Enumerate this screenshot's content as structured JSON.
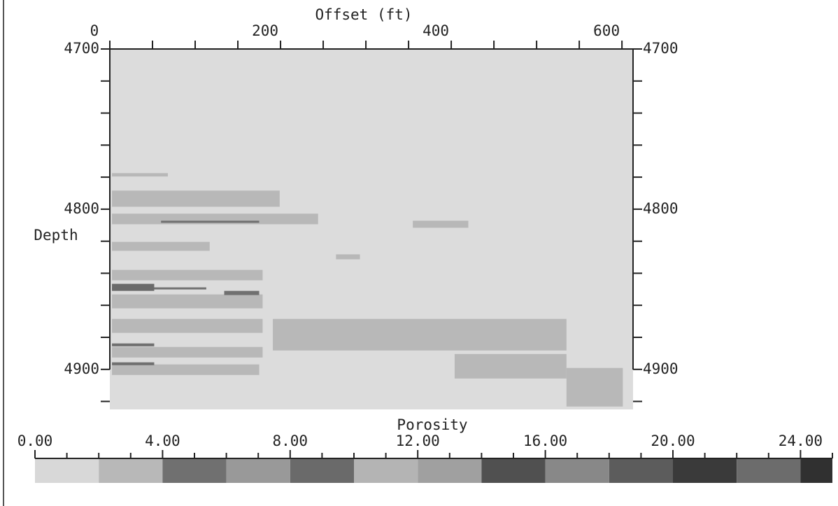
{
  "chart_data": {
    "type": "section",
    "x_label": "Offset (ft)",
    "y_label": "Depth",
    "xlim": [
      0,
      613
    ],
    "xticks": [
      0,
      200,
      400,
      600
    ],
    "xminor_ticks": [
      50,
      100,
      150,
      250,
      300,
      350,
      450,
      500,
      550
    ],
    "ylim": [
      4700,
      4925
    ],
    "yticks": [
      4700,
      4800,
      4900
    ],
    "yminor_ticks": [
      4720,
      4740,
      4760,
      4780,
      4820,
      4840,
      4860,
      4880,
      4920
    ],
    "layers": [
      {
        "offset": [
          2.5,
          68
        ],
        "depth": [
          4777.5,
          4779.6
        ],
        "porosity": 3
      },
      {
        "offset": [
          2.5,
          199
        ],
        "depth": [
          4788.4,
          4798.5
        ],
        "porosity": 3
      },
      {
        "offset": [
          2.5,
          244
        ],
        "depth": [
          4802.8,
          4809.4
        ],
        "porosity": 3
      },
      {
        "offset": [
          2.5,
          117
        ],
        "depth": [
          4820.4,
          4826.0
        ],
        "porosity": 3
      },
      {
        "offset": [
          2.5,
          179
        ],
        "depth": [
          4837.9,
          4844.4
        ],
        "porosity": 3
      },
      {
        "offset": [
          2.5,
          179
        ],
        "depth": [
          4853.2,
          4861.9
        ],
        "porosity": 3
      },
      {
        "offset": [
          2.5,
          179
        ],
        "depth": [
          4868.5,
          4877.2
        ],
        "porosity": 3
      },
      {
        "offset": [
          2.5,
          179
        ],
        "depth": [
          4886.0,
          4892.6
        ],
        "porosity": 3
      },
      {
        "offset": [
          2.5,
          175
        ],
        "depth": [
          4896.9,
          4903.5
        ],
        "porosity": 3
      },
      {
        "offset": [
          191,
          535
        ],
        "depth": [
          4868.5,
          4888.2
        ],
        "porosity": 3
      },
      {
        "offset": [
          404,
          535
        ],
        "depth": [
          4890.4,
          4905.7
        ],
        "porosity": 3
      },
      {
        "offset": [
          535,
          601
        ],
        "depth": [
          4899.1,
          4923.2
        ],
        "porosity": 3
      },
      {
        "offset": [
          355,
          420
        ],
        "depth": [
          4807.2,
          4811.6
        ],
        "porosity": 3
      },
      {
        "offset": [
          265,
          293
        ],
        "depth": [
          4828.2,
          4831.3
        ],
        "porosity": 3
      },
      {
        "offset": [
          60,
          175
        ],
        "depth": [
          4807.2,
          4808.5
        ],
        "porosity": 5
      },
      {
        "offset": [
          2.5,
          113
        ],
        "depth": [
          4848.8,
          4850.1
        ],
        "porosity": 5
      },
      {
        "offset": [
          134,
          175
        ],
        "depth": [
          4851.0,
          4853.6
        ],
        "porosity": 5
      },
      {
        "offset": [
          2.5,
          52
        ],
        "depth": [
          4846.6,
          4851.0
        ],
        "porosity": 9
      },
      {
        "offset": [
          2.5,
          52
        ],
        "depth": [
          4895.6,
          4897.4
        ],
        "porosity": 5
      },
      {
        "offset": [
          2.5,
          52
        ],
        "depth": [
          4883.8,
          4885.6
        ],
        "porosity": 5
      }
    ],
    "colorbar": {
      "title": "Porosity",
      "lim": [
        0,
        25
      ],
      "ticks": [
        {
          "value": 0,
          "label": "0.00"
        },
        {
          "value": 4,
          "label": "4.00"
        },
        {
          "value": 8,
          "label": "8.00"
        },
        {
          "value": 12,
          "label": "12.00"
        },
        {
          "value": 16,
          "label": "16.00"
        },
        {
          "value": 20,
          "label": "20.00"
        },
        {
          "value": 24,
          "label": "24.00"
        }
      ],
      "minor_ticks": [
        1,
        2,
        3,
        5,
        6,
        7,
        9,
        10,
        11,
        13,
        14,
        15,
        17,
        18,
        19,
        21,
        22,
        23,
        25
      ],
      "bins": [
        0,
        2,
        4,
        6,
        8,
        10,
        12,
        14,
        16,
        18,
        20,
        22,
        24,
        25
      ],
      "colors": [
        "#d8d8d8",
        "#b8b8b8",
        "#707070",
        "#999999",
        "#6a6a6a",
        "#b4b4b4",
        "#a0a0a0",
        "#505050",
        "#888888",
        "#5c5c5c",
        "#3a3a3a",
        "#6c6c6c",
        "#303030"
      ]
    }
  }
}
